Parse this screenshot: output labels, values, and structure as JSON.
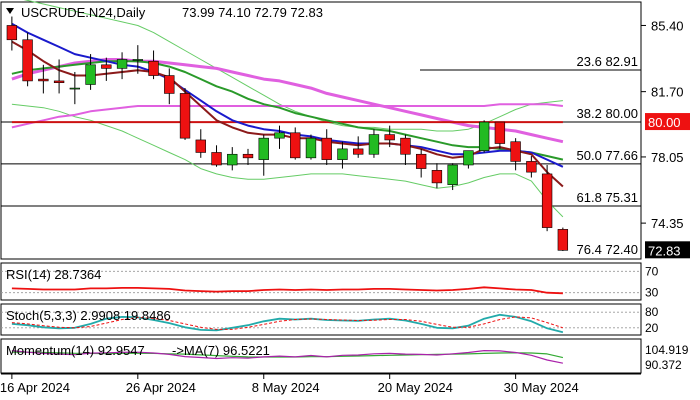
{
  "colors": {
    "bull": "#22bb22",
    "bear": "#ee1111",
    "ema_fast": "#8b1a1a",
    "ema_mid": "#1a1acc",
    "ema_slow": "#2a9a2a",
    "ma_pink": "#e060e0",
    "ma_red": "#cc1111",
    "bollinger": "#66cc66",
    "rsi": "#ee1111",
    "stoch_k": "#22aaaa",
    "stoch_d": "#ee1111",
    "momentum": "#aa22aa",
    "momentum_ma": "#33aa33",
    "price_badge": "#000000",
    "level_badge": "#ee1111"
  },
  "chart_data": {
    "type": "candlestick",
    "symbol": "USCRUDE.N24",
    "timeframe": "Daily",
    "ohlc_header": [
      "73.99",
      "74.10",
      "72.79",
      "72.83"
    ],
    "dates": [
      "2024-04-16",
      "2024-04-17",
      "2024-04-18",
      "2024-04-19",
      "2024-04-22",
      "2024-04-23",
      "2024-04-24",
      "2024-04-25",
      "2024-04-26",
      "2024-04-29",
      "2024-04-30",
      "2024-05-01",
      "2024-05-02",
      "2024-05-03",
      "2024-05-06",
      "2024-05-07",
      "2024-05-08",
      "2024-05-09",
      "2024-05-10",
      "2024-05-13",
      "2024-05-14",
      "2024-05-15",
      "2024-05-16",
      "2024-05-17",
      "2024-05-20",
      "2024-05-21",
      "2024-05-22",
      "2024-05-23",
      "2024-05-24",
      "2024-05-27",
      "2024-05-28",
      "2024-05-29",
      "2024-05-30",
      "2024-05-31",
      "2024-06-03",
      "2024-06-04"
    ],
    "ohlc": [
      [
        85.4,
        85.9,
        84.0,
        84.6
      ],
      [
        84.6,
        85.0,
        82.0,
        82.3
      ],
      [
        82.4,
        83.2,
        81.6,
        82.3
      ],
      [
        82.3,
        83.5,
        81.6,
        82.2
      ],
      [
        81.9,
        82.8,
        81.0,
        81.9
      ],
      [
        82.1,
        83.8,
        81.8,
        83.2
      ],
      [
        83.2,
        83.6,
        82.3,
        83.0
      ],
      [
        83.0,
        83.9,
        82.4,
        83.5
      ],
      [
        83.5,
        84.3,
        82.7,
        83.5
      ],
      [
        83.4,
        84.0,
        82.4,
        82.6
      ],
      [
        82.6,
        83.0,
        81.0,
        81.6
      ],
      [
        81.6,
        81.9,
        79.0,
        79.1
      ],
      [
        79.0,
        79.6,
        78.0,
        78.3
      ],
      [
        78.3,
        78.7,
        77.5,
        77.6
      ],
      [
        77.6,
        78.6,
        77.3,
        78.2
      ],
      [
        78.2,
        78.5,
        77.6,
        78.0
      ],
      [
        77.9,
        79.3,
        77.0,
        79.1
      ],
      [
        79.1,
        79.8,
        78.5,
        79.4
      ],
      [
        79.4,
        79.7,
        77.9,
        78.0
      ],
      [
        78.0,
        79.3,
        77.9,
        79.1
      ],
      [
        79.1,
        79.6,
        77.6,
        77.9
      ],
      [
        77.9,
        78.9,
        77.4,
        78.5
      ],
      [
        78.5,
        79.2,
        78.0,
        78.2
      ],
      [
        78.2,
        79.6,
        78.0,
        79.3
      ],
      [
        79.3,
        79.8,
        78.6,
        79.0
      ],
      [
        79.1,
        79.3,
        77.6,
        78.2
      ],
      [
        78.2,
        78.5,
        76.9,
        77.4
      ],
      [
        77.3,
        77.7,
        76.3,
        76.6
      ],
      [
        76.5,
        77.7,
        76.2,
        77.6
      ],
      [
        77.6,
        78.4,
        77.4,
        78.4
      ],
      [
        78.4,
        80.1,
        78.3,
        80.0
      ],
      [
        80.0,
        80.0,
        78.5,
        78.8
      ],
      [
        78.9,
        79.1,
        77.3,
        77.8
      ],
      [
        77.8,
        78.1,
        76.9,
        77.2
      ],
      [
        77.1,
        77.6,
        73.9,
        74.1
      ],
      [
        74.0,
        74.1,
        72.79,
        72.83
      ]
    ],
    "overlays": {
      "ema_fast": [
        84.5,
        84.0,
        83.4,
        82.9,
        82.6,
        82.6,
        82.7,
        82.8,
        82.9,
        82.8,
        82.5,
        81.7,
        80.9,
        80.1,
        79.7,
        79.4,
        79.3,
        79.3,
        79.1,
        79.1,
        78.9,
        78.8,
        78.7,
        78.8,
        78.8,
        78.7,
        78.5,
        78.2,
        78.0,
        78.1,
        78.5,
        78.6,
        78.4,
        78.2,
        77.2,
        76.4
      ],
      "ema_mid": [
        85.5,
        85.0,
        84.6,
        84.2,
        83.8,
        83.6,
        83.4,
        83.2,
        83.1,
        82.8,
        82.4,
        81.8,
        81.2,
        80.6,
        80.1,
        79.8,
        79.6,
        79.5,
        79.3,
        79.2,
        79.0,
        78.9,
        78.8,
        78.8,
        78.8,
        78.7,
        78.6,
        78.4,
        78.2,
        78.2,
        78.3,
        78.4,
        78.4,
        78.3,
        77.9,
        77.5
      ],
      "ema_slow": [
        82.7,
        82.9,
        83.0,
        83.1,
        83.2,
        83.3,
        83.4,
        83.4,
        83.4,
        83.3,
        83.1,
        82.8,
        82.4,
        82.0,
        81.7,
        81.3,
        81.0,
        80.8,
        80.5,
        80.3,
        80.1,
        79.9,
        79.7,
        79.6,
        79.5,
        79.3,
        79.1,
        78.9,
        78.7,
        78.6,
        78.6,
        78.5,
        78.4,
        78.3,
        78.1,
        77.9
      ],
      "ma_pink": [
        82.4,
        82.7,
        82.9,
        83.1,
        83.3,
        83.4,
        83.5,
        83.5,
        83.4,
        83.4,
        83.3,
        83.2,
        83.1,
        83.0,
        82.8,
        82.6,
        82.4,
        82.3,
        82.1,
        81.9,
        81.6,
        81.4,
        81.2,
        81.0,
        80.8,
        80.6,
        80.4,
        80.2,
        80.0,
        79.8,
        79.7,
        79.6,
        79.5,
        79.3,
        79.1,
        78.9
      ],
      "ma_magenta": [
        79.7,
        79.9,
        80.1,
        80.3,
        80.4,
        80.6,
        80.7,
        80.8,
        80.9,
        80.9,
        80.9,
        80.9,
        80.9,
        80.9,
        80.9,
        80.9,
        80.9,
        80.9,
        80.9,
        80.9,
        80.9,
        80.9,
        80.9,
        80.9,
        80.9,
        80.9,
        80.9,
        80.9,
        80.9,
        80.9,
        80.9,
        81.0,
        81.0,
        81.0,
        81.0,
        80.9
      ],
      "ma_200": [
        80.0,
        80.0,
        80.0,
        80.0,
        80.0,
        80.0,
        80.0,
        80.0,
        80.0,
        80.0,
        80.0,
        80.0,
        80.0,
        80.0,
        80.0,
        80.0,
        80.0,
        80.0,
        80.0,
        80.0,
        80.0,
        80.0,
        80.0,
        80.0,
        80.0,
        80.0,
        80.0,
        80.0,
        80.0,
        80.0,
        80.0,
        80.0,
        80.0,
        80.0,
        80.0,
        80.0
      ],
      "bb_upper": [
        87.0,
        86.8,
        86.6,
        86.4,
        86.2,
        86.0,
        85.8,
        85.6,
        85.4,
        85.0,
        84.5,
        84.0,
        83.5,
        83.0,
        82.5,
        82.0,
        81.5,
        81.0,
        80.6,
        80.3,
        80.0,
        79.8,
        79.7,
        79.7,
        79.6,
        79.6,
        79.6,
        79.5,
        79.5,
        79.6,
        79.9,
        80.3,
        80.7,
        81.0,
        81.1,
        81.2
      ],
      "bb_lower": [
        81.0,
        80.9,
        80.8,
        80.6,
        80.3,
        80.1,
        79.8,
        79.5,
        79.1,
        78.7,
        78.3,
        77.9,
        77.4,
        77.1,
        76.9,
        76.8,
        76.8,
        76.9,
        77.0,
        77.1,
        77.1,
        77.1,
        77.0,
        76.9,
        76.8,
        76.7,
        76.5,
        76.3,
        76.4,
        76.6,
        76.9,
        77.1,
        77.1,
        76.7,
        75.6,
        74.7
      ]
    },
    "price_axis": {
      "ticks": [
        85.4,
        81.7,
        78.05,
        74.35
      ],
      "tick_labels": [
        "85.40",
        "81.70",
        "78.05",
        "74.35"
      ],
      "range": [
        72.4,
        86.6
      ]
    },
    "date_axis": {
      "labels": [
        {
          "date": "2024-04-16",
          "text": "16 Apr 2024"
        },
        {
          "date": "2024-04-26",
          "text": "26 Apr 2024"
        },
        {
          "date": "2024-05-08",
          "text": "8 May 2024"
        },
        {
          "date": "2024-05-20",
          "text": "20 May 2024"
        },
        {
          "date": "2024-05-30",
          "text": "30 May 2024"
        }
      ]
    },
    "fib_levels": [
      {
        "value": 82.91,
        "label": "23.6 82.91",
        "line": "top"
      },
      {
        "value": 80.0,
        "label": "38.2 80.00",
        "line": "full"
      },
      {
        "value": 77.66,
        "label": "50.0 77.66",
        "line": "full"
      },
      {
        "value": 75.31,
        "label": "61.8 75.31",
        "line": "full"
      },
      {
        "value": 72.4,
        "label": "76.4 72.40",
        "line": "none"
      }
    ],
    "marked_levels": [
      {
        "value": 80.0,
        "label": "80.00",
        "color_key": "level_badge"
      },
      {
        "value": 72.83,
        "label": "72.83",
        "color_key": "price_badge"
      }
    ],
    "rsi": {
      "label": "RSI(14) 28.7364",
      "axis_labels": [
        "70",
        "30"
      ],
      "levels": [
        70,
        30
      ],
      "range": [
        20,
        80
      ],
      "values": [
        38,
        37,
        36,
        36,
        36,
        38,
        38,
        39,
        39,
        38,
        37,
        34,
        33,
        32,
        33,
        33,
        35,
        36,
        35,
        36,
        35,
        36,
        36,
        37,
        37,
        36,
        35,
        34,
        35,
        37,
        40,
        38,
        36,
        35,
        30,
        28.7364
      ]
    },
    "stoch": {
      "label": "Stoch(5,3,3) 2.9908 19.8486",
      "axis_labels": [
        "80",
        "20"
      ],
      "levels": [
        80,
        20
      ],
      "range": [
        0,
        100
      ],
      "k": [
        35,
        30,
        22,
        18,
        20,
        35,
        55,
        62,
        60,
        50,
        38,
        22,
        12,
        10,
        20,
        30,
        45,
        55,
        52,
        55,
        50,
        48,
        47,
        52,
        55,
        48,
        35,
        20,
        18,
        28,
        55,
        70,
        62,
        45,
        18,
        2.9908
      ],
      "d": [
        40,
        35,
        28,
        22,
        20,
        25,
        38,
        52,
        60,
        56,
        48,
        35,
        22,
        14,
        14,
        22,
        33,
        45,
        52,
        54,
        52,
        50,
        48,
        49,
        52,
        52,
        45,
        33,
        22,
        22,
        35,
        52,
        62,
        58,
        40,
        19.8486
      ]
    },
    "momentum": {
      "label": "Momentum(14) 92.9547",
      "ma_label": "->MA(7) 96.5221",
      "axis_labels": [
        "104.919",
        "90.372"
      ],
      "range": [
        88.0,
        106.5
      ],
      "values": [
        101.0,
        100.0,
        99.2,
        98.8,
        98.4,
        99.4,
        99.6,
        99.9,
        100.0,
        99.5,
        98.6,
        97.2,
        96.6,
        96.0,
        96.5,
        96.2,
        97.0,
        97.5,
        97.0,
        97.9,
        97.0,
        98.0,
        98.2,
        99.0,
        99.2,
        98.8,
        98.6,
        98.2,
        99.0,
        99.8,
        101.0,
        100.8,
        99.8,
        98.0,
        95.0,
        92.9547
      ],
      "ma": [
        100.0,
        100.0,
        99.8,
        99.6,
        99.3,
        99.2,
        99.1,
        99.3,
        99.3,
        99.2,
        99.0,
        98.8,
        98.3,
        97.8,
        97.4,
        97.0,
        96.9,
        96.9,
        96.9,
        97.1,
        97.1,
        97.4,
        97.6,
        97.8,
        98.0,
        98.2,
        98.4,
        98.6,
        98.7,
        98.9,
        99.2,
        99.5,
        99.6,
        99.5,
        98.9,
        96.5221
      ]
    }
  }
}
